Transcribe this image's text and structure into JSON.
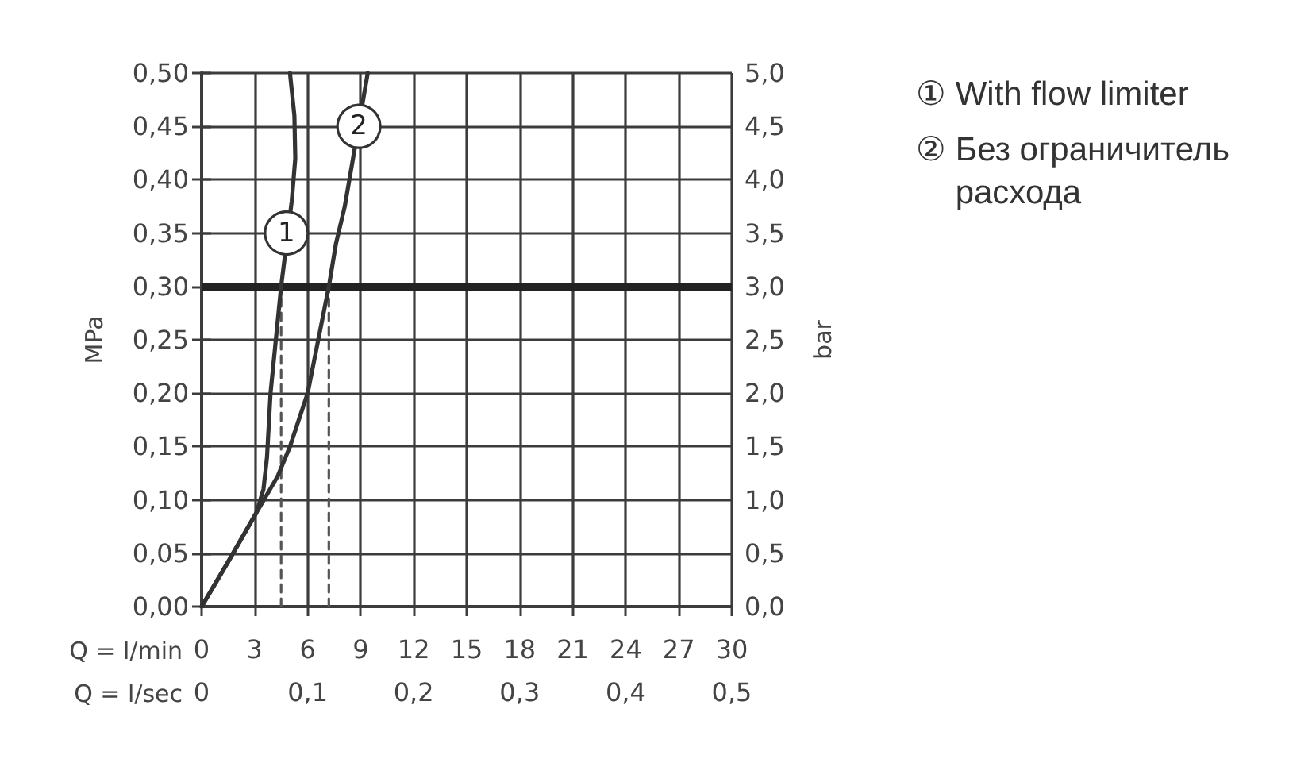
{
  "chart_data": {
    "type": "line",
    "xlabel": "Q = l/min",
    "x2label": "Q = l/sec",
    "ylabel": "MPa",
    "y2label": "bar",
    "xlim": [
      0,
      30
    ],
    "xticks": [
      0,
      3,
      6,
      9,
      12,
      15,
      18,
      21,
      24,
      27,
      30
    ],
    "x2lim": [
      0,
      0.5
    ],
    "x2ticks": [
      0,
      {
        "value": 0.1,
        "label": "0,1"
      },
      {
        "value": 0.2,
        "label": "0,2"
      },
      {
        "value": 0.3,
        "label": "0,3"
      },
      {
        "value": 0.4,
        "label": "0,4"
      },
      {
        "value": 0.5,
        "label": "0,5"
      }
    ],
    "ylim": [
      0,
      0.5
    ],
    "yticks": [
      {
        "value": 0,
        "label": "0,00"
      },
      {
        "value": 0.05,
        "label": "0,05"
      },
      {
        "value": 0.1,
        "label": "0,10"
      },
      {
        "value": 0.15,
        "label": "0,15"
      },
      {
        "value": 0.2,
        "label": "0,20"
      },
      {
        "value": 0.25,
        "label": "0,25"
      },
      {
        "value": 0.3,
        "label": "0,30"
      },
      {
        "value": 0.35,
        "label": "0,35"
      },
      {
        "value": 0.4,
        "label": "0,40"
      },
      {
        "value": 0.45,
        "label": "0,45"
      },
      {
        "value": 0.5,
        "label": "0,50"
      }
    ],
    "y2lim": [
      0,
      5
    ],
    "y2ticks": [
      {
        "value": 0,
        "label": "0,0"
      },
      {
        "value": 0.5,
        "label": "0,5"
      },
      {
        "value": 1,
        "label": "1,0"
      },
      {
        "value": 1.5,
        "label": "1,5"
      },
      {
        "value": 2,
        "label": "2,0"
      },
      {
        "value": 2.5,
        "label": "2,5"
      },
      {
        "value": 3,
        "label": "3,0"
      },
      {
        "value": 3.5,
        "label": "3,5"
      },
      {
        "value": 4,
        "label": "4,0"
      },
      {
        "value": 4.5,
        "label": "4,5"
      },
      {
        "value": 5,
        "label": "5,0"
      }
    ],
    "grid": true,
    "legend": "top right",
    "series": [
      {
        "name": "① With flow limiter",
        "color": "#333333",
        "x": [
          0,
          1.5,
          3.1,
          3.5,
          3.7,
          3.9,
          4.2,
          4.5,
          5.1,
          5.3,
          5.25,
          5.0
        ],
        "values": [
          0,
          0.042,
          0.088,
          0.11,
          0.14,
          0.2,
          0.25,
          0.3,
          0.38,
          0.42,
          0.46,
          0.5
        ]
      },
      {
        "name": "② Без ограничитель расхода",
        "color": "#333333",
        "x": [
          0,
          1.5,
          3.1,
          4.3,
          5.0,
          6.0,
          6.6,
          7.2,
          7.6,
          8.1,
          9.4
        ],
        "values": [
          0,
          0.042,
          0.088,
          0.122,
          0.15,
          0.2,
          0.25,
          0.3,
          0.34,
          0.375,
          0.5
        ]
      },
      {
        "color": "#555555",
        "line_style": "dashed",
        "x": [
          4.5,
          4.5
        ],
        "values": [
          0,
          0.3
        ]
      },
      {
        "color": "#555555",
        "line_style": "dashed",
        "x": [
          7.2,
          7.2
        ],
        "values": [
          0,
          0.3
        ]
      }
    ],
    "ref_lines": [
      {
        "axis": "y",
        "value": 0.3,
        "color": "#222222"
      }
    ],
    "annotations": [
      {
        "text": "1",
        "x": 4.8,
        "y": 0.35
      },
      {
        "text": "2",
        "x": 8.9,
        "y": 0.45
      }
    ]
  }
}
